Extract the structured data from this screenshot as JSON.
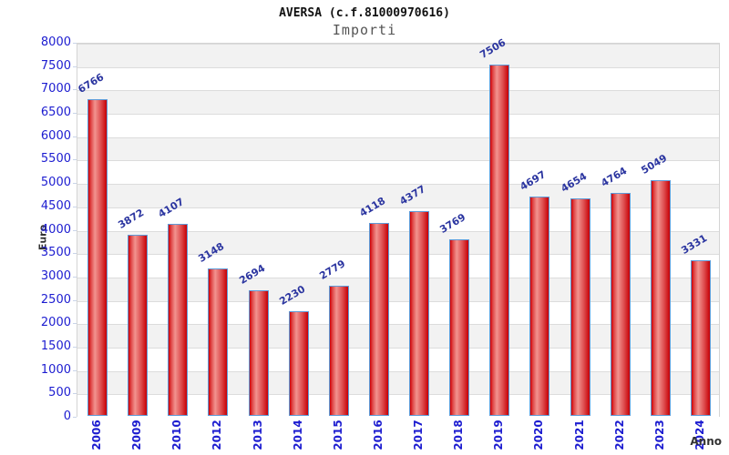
{
  "chart_data": {
    "type": "bar",
    "title": "AVERSA (c.f.81000970616)",
    "subtitle": "Importi",
    "xlabel": "Anno",
    "ylabel": "Euro",
    "categories": [
      "2006",
      "2009",
      "2010",
      "2012",
      "2013",
      "2014",
      "2015",
      "2016",
      "2017",
      "2018",
      "2019",
      "2020",
      "2021",
      "2022",
      "2023",
      "2024"
    ],
    "values": [
      6766,
      3872,
      4107,
      3148,
      2694,
      2230,
      2779,
      4118,
      4377,
      3769,
      7506,
      4697,
      4654,
      4764,
      5049,
      3331
    ],
    "ylim": [
      0,
      8000
    ],
    "ytick_step": 500,
    "yticks": [
      0,
      500,
      1000,
      1500,
      2000,
      2500,
      3000,
      3500,
      4000,
      4500,
      5000,
      5500,
      6000,
      6500,
      7000,
      7500,
      8000
    ],
    "grid": "horizontal gridlines with alternating gray/white bands",
    "legend": "none",
    "colors": {
      "bar_gradient_edge": "#cf0004",
      "bar_gradient_center": "#f2938f",
      "bar_border": "#5e9bd8",
      "tick_label": "#1c1cd0",
      "value_label": "#2b35a0",
      "band_gray": "#f2f2f2",
      "gridline": "#dcdcdc",
      "title": "#111111",
      "subtitle": "#555555",
      "axis_title": "#333333"
    }
  }
}
